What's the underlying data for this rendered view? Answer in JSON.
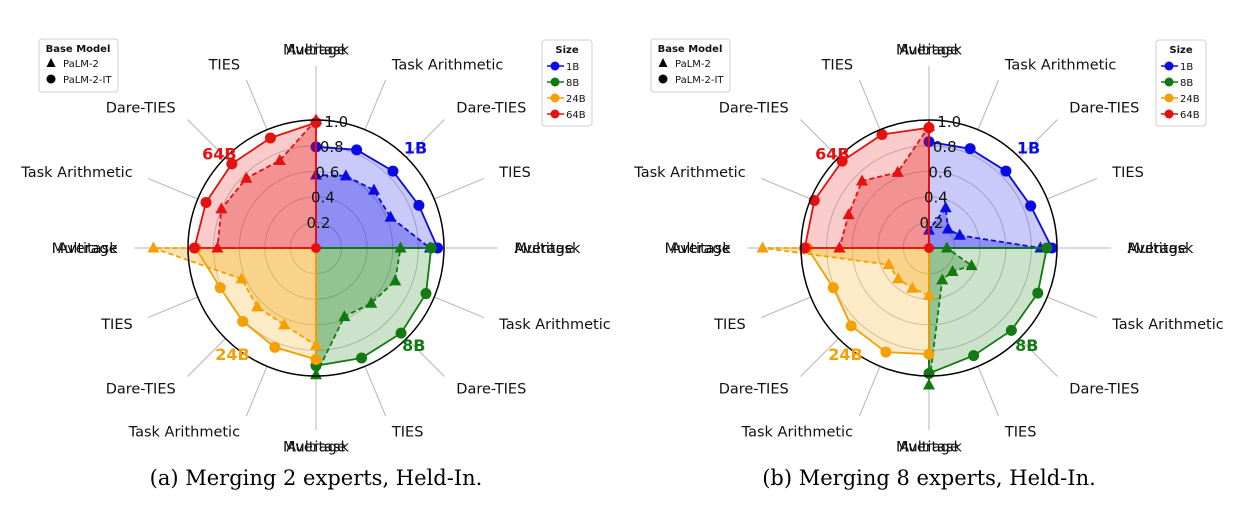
{
  "colors": {
    "1B": "#0a0ae6",
    "8B": "#137a13",
    "24B": "#f5a000",
    "64B": "#e51010"
  },
  "chart_data": [
    {
      "type": "radar",
      "caption": "(a) Merging 2 experts, Held-In.",
      "rlim": [
        0,
        1.0
      ],
      "rticks": [
        "0.2",
        "0.4",
        "0.6",
        "0.8",
        "1.0"
      ],
      "legend_base": {
        "title": "Base Model",
        "entries": [
          "PaLM-2",
          "PaLM-2-IT"
        ]
      },
      "legend_size": {
        "title": "Size",
        "entries": [
          "1B",
          "8B",
          "24B",
          "64B"
        ]
      },
      "groups": [
        {
          "size": "1B",
          "label": "1B",
          "color": "#0a0ae6",
          "categories": [
            "Average",
            "Task Arithmetic",
            "Dare-TIES",
            "TIES",
            "Multitask"
          ],
          "palm2_it": [
            0.79,
            0.83,
            0.85,
            0.87,
            0.95
          ],
          "palm2": [
            0.57,
            0.61,
            0.64,
            0.63,
            0.89
          ]
        },
        {
          "size": "8B",
          "label": "8B",
          "color": "#137a13",
          "categories": [
            "Average",
            "Task Arithmetic",
            "Dare-TIES",
            "TIES",
            "Multitask"
          ],
          "palm2_it": [
            0.9,
            0.93,
            0.94,
            0.93,
            0.92
          ],
          "palm2": [
            0.66,
            0.67,
            0.61,
            0.58,
            0.99
          ]
        },
        {
          "size": "24B",
          "label": "24B",
          "color": "#f5a000",
          "categories": [
            "Average",
            "Task Arithmetic",
            "Dare-TIES",
            "TIES",
            "Multitask"
          ],
          "palm2_it": [
            0.87,
            0.84,
            0.81,
            0.81,
            0.94
          ],
          "palm2": [
            0.76,
            0.65,
            0.65,
            0.63,
            1.27
          ]
        },
        {
          "size": "64B",
          "label": "64B",
          "color": "#e51010",
          "categories": [
            "Average",
            "Task Arithmetic",
            "Dare-TIES",
            "TIES",
            "Multitask"
          ],
          "palm2_it": [
            0.95,
            0.93,
            0.93,
            0.93,
            0.98
          ],
          "palm2": [
            0.77,
            0.8,
            0.77,
            0.74,
            1.0
          ]
        }
      ]
    },
    {
      "type": "radar",
      "caption": "(b) Merging 8 experts, Held-In.",
      "rlim": [
        0,
        1.0
      ],
      "rticks": [
        "0.2",
        "0.4",
        "0.6",
        "0.8",
        "1.0"
      ],
      "legend_base": {
        "title": "Base Model",
        "entries": [
          "PaLM-2",
          "PaLM-2-IT"
        ]
      },
      "legend_size": {
        "title": "Size",
        "entries": [
          "1B",
          "8B",
          "24B",
          "64B"
        ]
      },
      "groups": [
        {
          "size": "1B",
          "label": "1B",
          "color": "#0a0ae6",
          "categories": [
            "Average",
            "Task Arithmetic",
            "Dare-TIES",
            "TIES",
            "Multitask"
          ],
          "palm2_it": [
            0.83,
            0.84,
            0.85,
            0.86,
            0.96
          ],
          "palm2": [
            0.14,
            0.34,
            0.21,
            0.26,
            0.87
          ]
        },
        {
          "size": "8B",
          "label": "8B",
          "color": "#137a13",
          "categories": [
            "Average",
            "Task Arithmetic",
            "Dare-TIES",
            "TIES",
            "Multitask"
          ],
          "palm2_it": [
            0.92,
            0.92,
            0.91,
            0.91,
            0.98
          ],
          "palm2": [
            0.14,
            0.36,
            0.26,
            0.27,
            1.07
          ]
        },
        {
          "size": "24B",
          "label": "24B",
          "color": "#f5a000",
          "categories": [
            "Average",
            "Task Arithmetic",
            "Dare-TIES",
            "TIES",
            "Multitask"
          ],
          "palm2_it": [
            0.83,
            0.88,
            0.86,
            0.81,
            0.95
          ],
          "palm2": [
            0.37,
            0.34,
            0.34,
            0.34,
            1.3
          ]
        },
        {
          "size": "64B",
          "label": "64B",
          "color": "#e51010",
          "categories": [
            "Average",
            "Task Arithmetic",
            "Dare-TIES",
            "TIES",
            "Multitask"
          ],
          "palm2_it": [
            0.97,
            0.97,
            0.96,
            0.96,
            0.94
          ],
          "palm2": [
            0.7,
            0.68,
            0.74,
            0.64,
            0.95
          ]
        }
      ]
    }
  ]
}
